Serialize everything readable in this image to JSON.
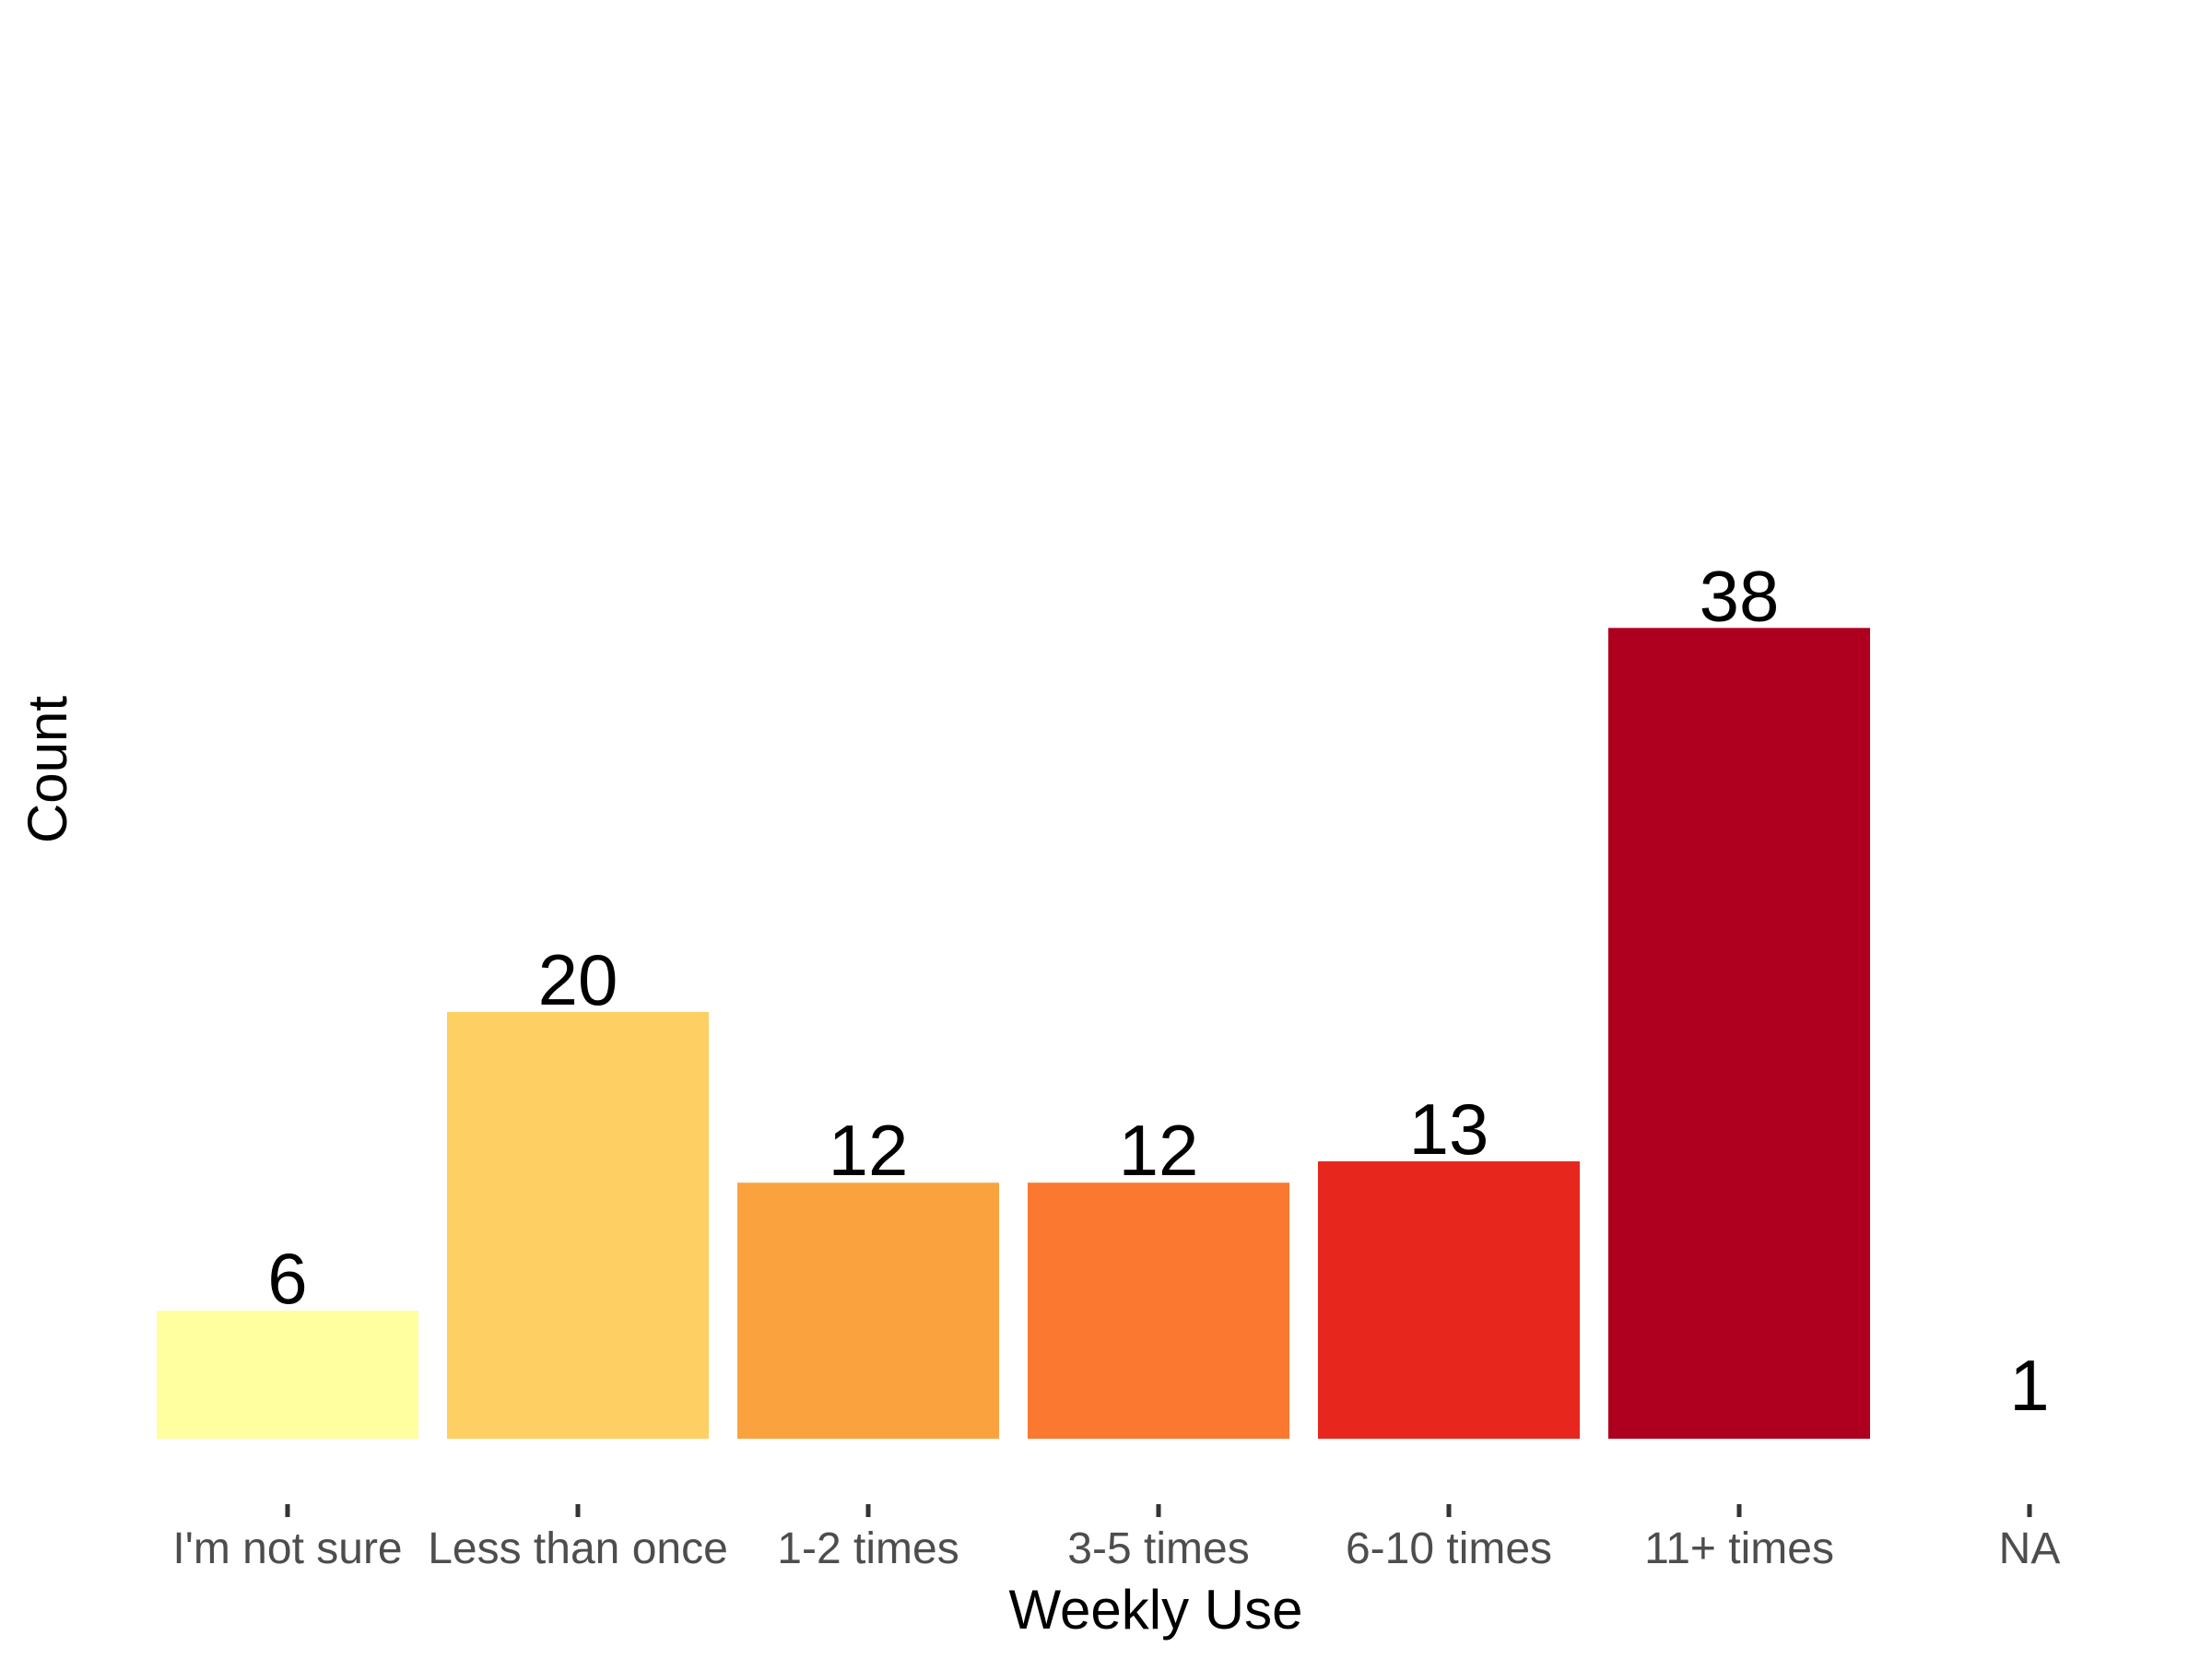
{
  "chart_data": {
    "type": "bar",
    "title": "",
    "xlabel": "Weekly Use",
    "ylabel": "Count",
    "categories": [
      "I'm not sure",
      "Less than once",
      "1-2 times",
      "3-5 times",
      "6-10 times",
      "11+ times",
      "NA"
    ],
    "values": [
      6,
      20,
      12,
      12,
      13,
      38,
      1
    ],
    "colors": [
      "#FFFF9F",
      "#FED063",
      "#FAA33E",
      "#FA782F",
      "#E7261E",
      "#AE001E",
      "#FFFFFF"
    ],
    "ylim": [
      0,
      40
    ],
    "grid": false,
    "legend": "none"
  }
}
